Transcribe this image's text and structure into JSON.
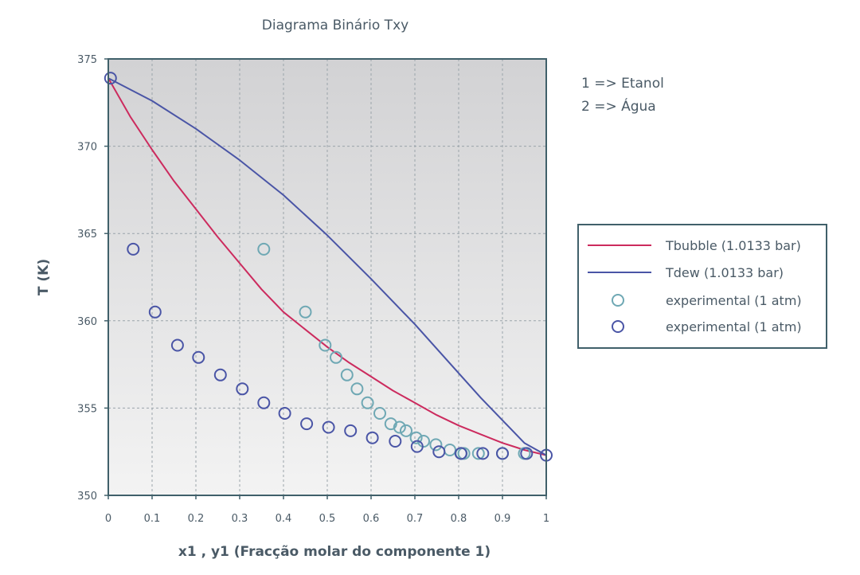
{
  "chart_data": {
    "type": "line",
    "title": "Diagrama Binário Txy",
    "xlabel": "x1 , y1 (Fracção molar do componente 1)",
    "ylabel": "T (K)",
    "xlim": [
      0,
      1
    ],
    "ylim": [
      350,
      375
    ],
    "x_ticks": [
      "0",
      "0.1",
      "0.2",
      "0.3",
      "0.4",
      "0.5",
      "0.6",
      "0.7",
      "0.8",
      "0.9",
      "1"
    ],
    "y_ticks": [
      "350",
      "355",
      "360",
      "365",
      "370",
      "375"
    ],
    "grid": true,
    "legend_position": "right",
    "notes": [
      "1 => Etanol",
      "2 => Água"
    ],
    "series": [
      {
        "name": "Tbubble (1.0133 bar)",
        "kind": "line",
        "color": "#cc2b5e",
        "x": [
          0,
          0.05,
          0.1,
          0.15,
          0.2,
          0.25,
          0.3,
          0.35,
          0.4,
          0.45,
          0.5,
          0.55,
          0.6,
          0.65,
          0.7,
          0.75,
          0.8,
          0.85,
          0.9,
          0.95,
          1.0
        ],
        "y": [
          373.9,
          371.7,
          369.8,
          368.0,
          366.4,
          364.8,
          363.3,
          361.8,
          360.5,
          359.5,
          358.5,
          357.6,
          356.8,
          356.0,
          355.3,
          354.6,
          354.0,
          353.5,
          353.0,
          352.6,
          352.3
        ]
      },
      {
        "name": "Tdew (1.0133 bar)",
        "kind": "line",
        "color": "#4a55a6",
        "x": [
          0,
          0.1,
          0.2,
          0.3,
          0.4,
          0.5,
          0.6,
          0.7,
          0.8,
          0.85,
          0.9,
          0.95,
          1.0
        ],
        "y": [
          373.9,
          372.6,
          371.0,
          369.2,
          367.2,
          364.9,
          362.4,
          359.8,
          357.0,
          355.6,
          354.3,
          353.0,
          352.3
        ]
      },
      {
        "name": "experimental (1 atm)",
        "kind": "scatter",
        "color": "#6fa8b4",
        "x": [
          0.355,
          0.45,
          0.495,
          0.52,
          0.545,
          0.568,
          0.592,
          0.62,
          0.645,
          0.665,
          0.68,
          0.703,
          0.72,
          0.748,
          0.78,
          0.806,
          0.812,
          0.845,
          0.9,
          0.95
        ],
        "y": [
          364.1,
          360.5,
          358.6,
          357.9,
          356.9,
          356.1,
          355.3,
          354.7,
          354.1,
          353.9,
          353.7,
          353.3,
          353.1,
          352.9,
          352.6,
          352.4,
          352.4,
          352.4,
          352.4,
          352.4
        ]
      },
      {
        "name": "experimental (1 atm)",
        "kind": "scatter",
        "color": "#4a55a6",
        "x": [
          0.005,
          0.057,
          0.107,
          0.158,
          0.206,
          0.256,
          0.306,
          0.355,
          0.403,
          0.453,
          0.503,
          0.553,
          0.603,
          0.655,
          0.705,
          0.755,
          0.805,
          0.855,
          0.9,
          0.955,
          1.0
        ],
        "y": [
          373.9,
          364.1,
          360.5,
          358.6,
          357.9,
          356.9,
          356.1,
          355.3,
          354.7,
          354.1,
          353.9,
          353.7,
          353.3,
          353.1,
          352.8,
          352.5,
          352.4,
          352.4,
          352.4,
          352.4,
          352.3
        ]
      }
    ]
  }
}
